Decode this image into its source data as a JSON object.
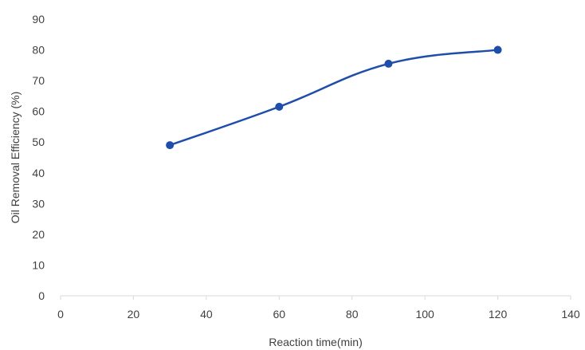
{
  "chart_data": {
    "type": "scatter",
    "title": "",
    "xlabel": "Reaction time(min)",
    "ylabel": "Oil Removal Efficiency (%)",
    "xlim": [
      0,
      140
    ],
    "ylim": [
      0,
      90
    ],
    "xticks": [
      0,
      20,
      40,
      60,
      80,
      100,
      120,
      140
    ],
    "yticks": [
      0,
      10,
      20,
      30,
      40,
      50,
      60,
      70,
      80,
      90
    ],
    "grid": false,
    "legend": "none",
    "line_style": "smooth",
    "series": [
      {
        "x": [
          30,
          60,
          90,
          120
        ],
        "y": [
          49,
          61.5,
          75.5,
          80
        ],
        "color": "#1f4eaa"
      }
    ]
  }
}
